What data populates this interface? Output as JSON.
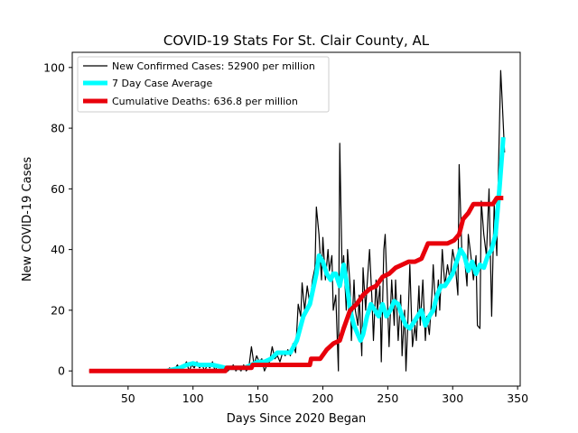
{
  "chart_data": {
    "type": "line",
    "title": "COVID-19 Stats For St. Clair County, AL",
    "xlabel": "Days Since 2020 Began",
    "ylabel": "New COVID-19 Cases",
    "xlim": [
      7,
      352
    ],
    "ylim": [
      -5,
      105
    ],
    "xticks": [
      50,
      100,
      150,
      200,
      250,
      300,
      350
    ],
    "yticks": [
      0,
      20,
      40,
      60,
      80,
      100
    ],
    "grid": false,
    "legend_position": "top-left",
    "series": [
      {
        "name": "New Confirmed Cases: 52900 per million",
        "color": "#000000",
        "points": [
          [
            20,
            0
          ],
          [
            40,
            0
          ],
          [
            60,
            0
          ],
          [
            75,
            0
          ],
          [
            80,
            0
          ],
          [
            82,
            1
          ],
          [
            85,
            0
          ],
          [
            88,
            2
          ],
          [
            90,
            0
          ],
          [
            92,
            1
          ],
          [
            95,
            3
          ],
          [
            97,
            0
          ],
          [
            99,
            2
          ],
          [
            101,
            1
          ],
          [
            103,
            3
          ],
          [
            105,
            1
          ],
          [
            107,
            2
          ],
          [
            109,
            0
          ],
          [
            111,
            2
          ],
          [
            113,
            1
          ],
          [
            115,
            3
          ],
          [
            117,
            0
          ],
          [
            119,
            2
          ],
          [
            121,
            1
          ],
          [
            123,
            0
          ],
          [
            125,
            1
          ],
          [
            127,
            0
          ],
          [
            129,
            1
          ],
          [
            131,
            2
          ],
          [
            133,
            0
          ],
          [
            135,
            1
          ],
          [
            137,
            0
          ],
          [
            139,
            2
          ],
          [
            141,
            0
          ],
          [
            143,
            1
          ],
          [
            145,
            8
          ],
          [
            147,
            2
          ],
          [
            149,
            5
          ],
          [
            151,
            3
          ],
          [
            153,
            4
          ],
          [
            155,
            0
          ],
          [
            157,
            2
          ],
          [
            159,
            3
          ],
          [
            161,
            8
          ],
          [
            163,
            4
          ],
          [
            165,
            5
          ],
          [
            167,
            3
          ],
          [
            169,
            6
          ],
          [
            171,
            5
          ],
          [
            173,
            7
          ],
          [
            175,
            5
          ],
          [
            177,
            9
          ],
          [
            179,
            6
          ],
          [
            181,
            22
          ],
          [
            183,
            18
          ],
          [
            184,
            29
          ],
          [
            186,
            20
          ],
          [
            188,
            28
          ],
          [
            190,
            22
          ],
          [
            192,
            30
          ],
          [
            194,
            34
          ],
          [
            195,
            54
          ],
          [
            197,
            45
          ],
          [
            199,
            30
          ],
          [
            200,
            44
          ],
          [
            202,
            30
          ],
          [
            204,
            40
          ],
          [
            205,
            33
          ],
          [
            207,
            38
          ],
          [
            208,
            20
          ],
          [
            210,
            25
          ],
          [
            212,
            0
          ],
          [
            213,
            75
          ],
          [
            215,
            30
          ],
          [
            216,
            38
          ],
          [
            218,
            20
          ],
          [
            219,
            40
          ],
          [
            221,
            28
          ],
          [
            222,
            10
          ],
          [
            224,
            30
          ],
          [
            225,
            20
          ],
          [
            227,
            15
          ],
          [
            228,
            25
          ],
          [
            230,
            5
          ],
          [
            231,
            34
          ],
          [
            233,
            20
          ],
          [
            234,
            28
          ],
          [
            236,
            40
          ],
          [
            238,
            22
          ],
          [
            239,
            10
          ],
          [
            241,
            30
          ],
          [
            242,
            20
          ],
          [
            244,
            28
          ],
          [
            245,
            3
          ],
          [
            247,
            40
          ],
          [
            248,
            45
          ],
          [
            250,
            20
          ],
          [
            251,
            8
          ],
          [
            253,
            30
          ],
          [
            255,
            15
          ],
          [
            256,
            30
          ],
          [
            258,
            10
          ],
          [
            260,
            25
          ],
          [
            261,
            5
          ],
          [
            263,
            20
          ],
          [
            264,
            0
          ],
          [
            266,
            22
          ],
          [
            267,
            35
          ],
          [
            269,
            8
          ],
          [
            271,
            15
          ],
          [
            272,
            10
          ],
          [
            274,
            28
          ],
          [
            275,
            15
          ],
          [
            277,
            30
          ],
          [
            279,
            10
          ],
          [
            280,
            18
          ],
          [
            282,
            12
          ],
          [
            284,
            25
          ],
          [
            285,
            35
          ],
          [
            287,
            18
          ],
          [
            289,
            30
          ],
          [
            290,
            20
          ],
          [
            292,
            40
          ],
          [
            294,
            28
          ],
          [
            296,
            35
          ],
          [
            298,
            30
          ],
          [
            300,
            40
          ],
          [
            302,
            35
          ],
          [
            304,
            25
          ],
          [
            305,
            68
          ],
          [
            307,
            40
          ],
          [
            309,
            38
          ],
          [
            311,
            28
          ],
          [
            312,
            45
          ],
          [
            314,
            38
          ],
          [
            316,
            30
          ],
          [
            318,
            38
          ],
          [
            319,
            15
          ],
          [
            321,
            14
          ],
          [
            322,
            56
          ],
          [
            324,
            45
          ],
          [
            326,
            38
          ],
          [
            328,
            60
          ],
          [
            330,
            18
          ],
          [
            332,
            55
          ],
          [
            334,
            38
          ],
          [
            335,
            62
          ],
          [
            337,
            99
          ],
          [
            338,
            90
          ],
          [
            340,
            72
          ]
        ]
      },
      {
        "name": "7 Day Case Average",
        "color": "#00ffff",
        "points": [
          [
            80,
            0
          ],
          [
            90,
            1
          ],
          [
            95,
            2
          ],
          [
            100,
            2.5
          ],
          [
            105,
            2
          ],
          [
            110,
            2
          ],
          [
            115,
            2
          ],
          [
            120,
            1.5
          ],
          [
            125,
            1
          ],
          [
            130,
            1
          ],
          [
            135,
            1
          ],
          [
            140,
            1
          ],
          [
            145,
            2
          ],
          [
            150,
            3
          ],
          [
            155,
            3
          ],
          [
            160,
            4
          ],
          [
            165,
            6
          ],
          [
            170,
            6
          ],
          [
            175,
            6
          ],
          [
            180,
            10
          ],
          [
            185,
            18
          ],
          [
            190,
            22
          ],
          [
            195,
            32
          ],
          [
            197,
            38
          ],
          [
            200,
            36
          ],
          [
            203,
            32
          ],
          [
            206,
            30
          ],
          [
            208,
            32
          ],
          [
            210,
            32
          ],
          [
            213,
            28
          ],
          [
            216,
            35
          ],
          [
            218,
            30
          ],
          [
            221,
            20
          ],
          [
            224,
            15
          ],
          [
            227,
            12
          ],
          [
            229,
            10
          ],
          [
            231,
            12
          ],
          [
            234,
            18
          ],
          [
            237,
            22
          ],
          [
            240,
            20
          ],
          [
            243,
            18
          ],
          [
            246,
            22
          ],
          [
            249,
            18
          ],
          [
            252,
            20
          ],
          [
            255,
            23
          ],
          [
            258,
            22
          ],
          [
            261,
            18
          ],
          [
            264,
            15
          ],
          [
            267,
            14
          ],
          [
            270,
            16
          ],
          [
            273,
            18
          ],
          [
            276,
            20
          ],
          [
            279,
            15
          ],
          [
            282,
            18
          ],
          [
            285,
            20
          ],
          [
            288,
            25
          ],
          [
            291,
            28
          ],
          [
            294,
            28
          ],
          [
            297,
            30
          ],
          [
            300,
            32
          ],
          [
            303,
            36
          ],
          [
            306,
            40
          ],
          [
            309,
            38
          ],
          [
            312,
            33
          ],
          [
            315,
            36
          ],
          [
            318,
            32
          ],
          [
            321,
            35
          ],
          [
            324,
            34
          ],
          [
            327,
            38
          ],
          [
            330,
            40
          ],
          [
            333,
            45
          ],
          [
            336,
            60
          ],
          [
            339,
            77
          ]
        ]
      },
      {
        "name": "Cumulative Deaths: 636.8 per million",
        "color": "#e8000b",
        "points": [
          [
            20,
            0
          ],
          [
            125,
            0
          ],
          [
            126,
            1
          ],
          [
            145,
            1
          ],
          [
            146,
            2
          ],
          [
            190,
            2
          ],
          [
            191,
            4
          ],
          [
            198,
            4
          ],
          [
            203,
            7
          ],
          [
            208,
            9
          ],
          [
            213,
            10
          ],
          [
            216,
            14
          ],
          [
            221,
            20
          ],
          [
            226,
            22
          ],
          [
            231,
            25
          ],
          [
            236,
            27
          ],
          [
            241,
            28
          ],
          [
            246,
            31
          ],
          [
            251,
            32
          ],
          [
            256,
            34
          ],
          [
            261,
            35
          ],
          [
            266,
            36
          ],
          [
            271,
            36
          ],
          [
            276,
            37
          ],
          [
            281,
            42
          ],
          [
            286,
            42
          ],
          [
            291,
            42
          ],
          [
            296,
            42
          ],
          [
            301,
            43
          ],
          [
            305,
            45
          ],
          [
            308,
            50
          ],
          [
            312,
            52
          ],
          [
            316,
            55
          ],
          [
            321,
            55
          ],
          [
            326,
            55
          ],
          [
            331,
            55
          ],
          [
            334,
            57
          ],
          [
            339,
            57
          ]
        ]
      }
    ]
  }
}
